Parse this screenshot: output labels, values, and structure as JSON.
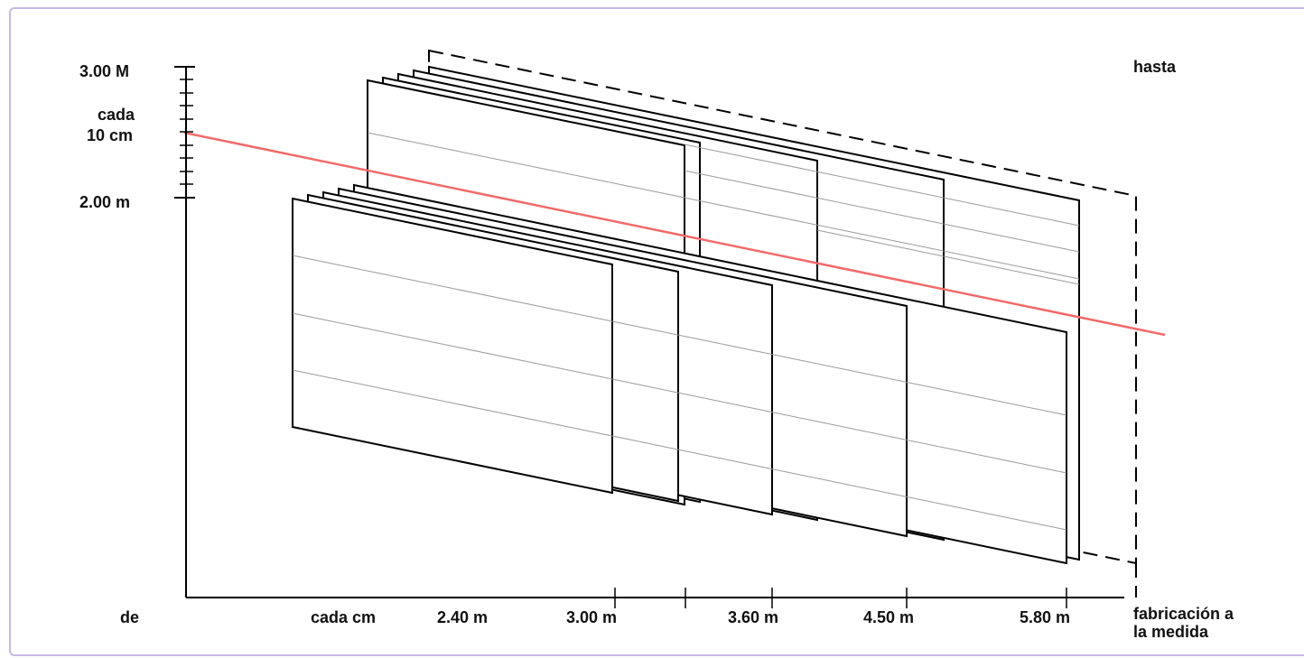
{
  "diagram": {
    "y_axis": {
      "top_label": "3.00 M",
      "step_label_line1": "cada",
      "step_label_line2": "10 cm",
      "bottom_label": "2.00 m"
    },
    "x_axis": {
      "start_label": "de",
      "step_label": "cada cm",
      "length_labels": [
        "2.40 m",
        "3.00 m",
        "3.60 m",
        "4.50 m",
        "5.80 m"
      ],
      "end_label_line1": "fabricación a",
      "end_label_line2": "la medida"
    },
    "upper_label": "hasta",
    "colors": {
      "highlight_line": "#f26a6a",
      "panel_stroke": "#000000",
      "grid_line": "#9a9a9a",
      "border": "#c9b8e6"
    }
  }
}
